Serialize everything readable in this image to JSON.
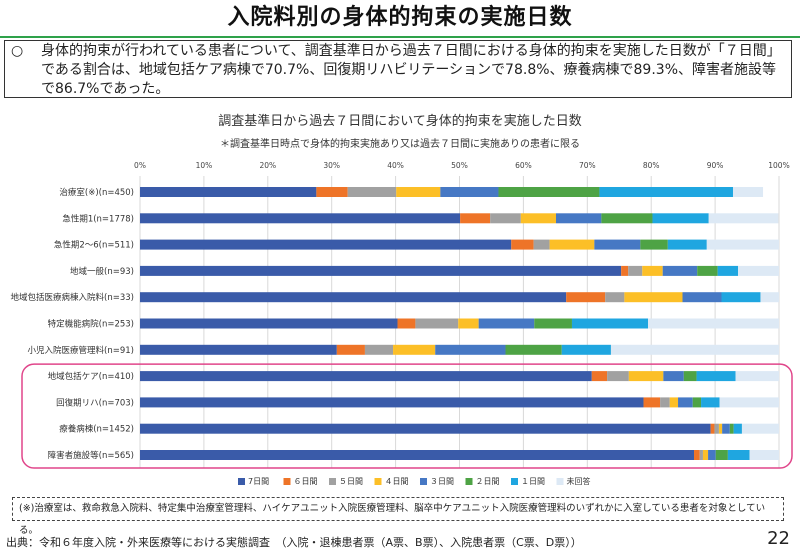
{
  "title": "入院料別の身体的拘束の実施日数",
  "summary": {
    "mark": "○",
    "text": "身体的拘束が行われている患者について、調査基準日から過去７日間における身体的拘束を実施した日数が「７日間」である割合は、地域包括ケア病棟で70.7%、回復期リハビリテーションで78.8%、療養病棟で89.3%、障害者施設等で86.7%であった。"
  },
  "footnote": "(※)治療室は、救命救急入院料、特定集中治療室管理料、ハイケアユニット入院医療管理料、脳卒中ケアユニット入院医療管理料のいずれかに入室している患者を対象としている。",
  "source": "出典：令和６年度入院・外来医療等における実態調査　（入院・退棟患者票（A票、B票）、入院患者票（C票、D票））",
  "page_number": "22",
  "highlight_color": "#e0458a",
  "chart_data": {
    "type": "bar",
    "orientation": "horizontal",
    "stacked": true,
    "title": "調査基準日から過去７日間において身体的拘束を実施した日数",
    "subtitle": "＊調査基準日時点で身体的拘束実施あり又は過去７日間に実施ありの患者に限る",
    "x_ticks": [
      "0%",
      "10%",
      "20%",
      "30%",
      "40%",
      "50%",
      "60%",
      "70%",
      "80%",
      "90%",
      "100%"
    ],
    "xlim": [
      0,
      100
    ],
    "grid": true,
    "legend_position": "bottom",
    "categories": [
      "治療室(※)(n=450)",
      "急性期1(n=1778)",
      "急性期2～6(n=511)",
      "地域一般(n=93)",
      "地域包括医療病棟入院料(n=33)",
      "特定機能病院(n=253)",
      "小児入院医療管理料(n=91)",
      "地域包括ケア(n=410)",
      "回復期リハ(n=703)",
      "療養病棟(n=1452)",
      "障害者施設等(n=565)"
    ],
    "highlighted_categories": [
      "地域包括ケア(n=410)",
      "回復期リハ(n=703)",
      "療養病棟(n=1452)",
      "障害者施設等(n=565)"
    ],
    "series": [
      {
        "name": "7日間",
        "color": "#3a5ba9",
        "values": [
          27.6,
          50.1,
          58.1,
          75.3,
          66.7,
          40.3,
          30.8,
          70.7,
          78.8,
          89.3,
          86.7
        ]
      },
      {
        "name": "６日間",
        "color": "#ee7428",
        "values": [
          4.9,
          4.7,
          3.5,
          1.1,
          6.1,
          2.8,
          4.4,
          2.4,
          2.6,
          0.6,
          0.9
        ]
      },
      {
        "name": "５日間",
        "color": "#a1a1a1",
        "values": [
          7.6,
          4.8,
          2.5,
          2.2,
          3.0,
          6.7,
          4.4,
          3.4,
          1.5,
          0.7,
          0.5
        ]
      },
      {
        "name": "４日間",
        "color": "#fcbf27",
        "values": [
          6.9,
          5.5,
          7.0,
          3.2,
          9.1,
          3.2,
          6.6,
          5.4,
          1.3,
          0.5,
          0.8
        ]
      },
      {
        "name": "３日間",
        "color": "#4678c4",
        "values": [
          9.1,
          7.1,
          7.2,
          5.4,
          6.1,
          8.7,
          11.0,
          3.2,
          2.3,
          1.2,
          1.2
        ]
      },
      {
        "name": "２日間",
        "color": "#4ea345",
        "values": [
          15.8,
          8.0,
          4.3,
          3.2,
          0.0,
          5.9,
          8.8,
          2.0,
          1.3,
          0.6,
          1.9
        ]
      },
      {
        "name": "１日間",
        "color": "#1fa6e0",
        "values": [
          20.9,
          8.8,
          6.1,
          3.2,
          6.1,
          11.9,
          7.7,
          6.1,
          2.9,
          1.3,
          3.4
        ]
      },
      {
        "name": "未回答",
        "color": "#dde9f5",
        "values": [
          4.7,
          10.9,
          11.3,
          6.4,
          2.9,
          20.5,
          26.3,
          6.8,
          9.3,
          5.8,
          4.6
        ]
      }
    ]
  }
}
